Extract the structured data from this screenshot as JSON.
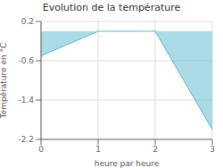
{
  "chart_data": {
    "type": "area",
    "title": "Evolution de la température",
    "xlabel": "heure par heure",
    "ylabel": "Température en °C",
    "x": [
      0,
      1,
      2,
      3
    ],
    "values": [
      -0.5,
      0.0,
      0.0,
      -2.0
    ],
    "color": "#55b8d0",
    "xlim": [
      0,
      3
    ],
    "ylim": [
      -2.2,
      0.2
    ],
    "xticks": [
      0,
      1,
      2,
      3
    ],
    "yticks": [
      0.2,
      -0.6,
      -1.4,
      -2.2
    ],
    "grid": true
  }
}
